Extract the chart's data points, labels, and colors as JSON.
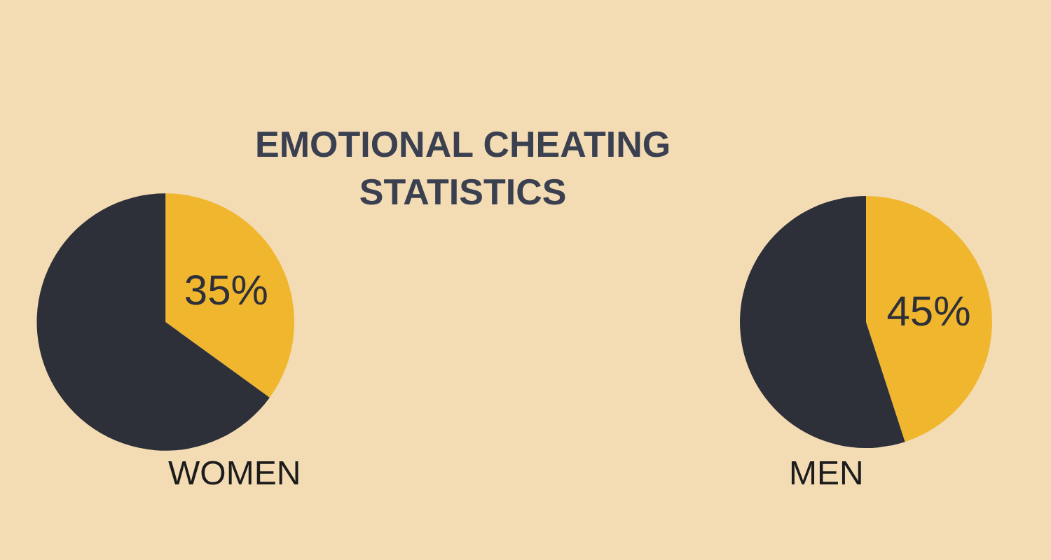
{
  "chart_data": [
    {
      "type": "pie",
      "title": "EMOTIONAL CHEATING\nSTATISTICS",
      "xlabel": "WOMEN",
      "categories": [
        null,
        null
      ],
      "values": [
        35,
        65
      ],
      "colors": [
        "#f0b62e",
        "#2e3039"
      ],
      "value_labels": [
        "35%",
        null
      ]
    },
    {
      "type": "pie",
      "xlabel": "MEN",
      "categories": [
        null,
        null
      ],
      "values": [
        45,
        55
      ],
      "colors": [
        "#f0b62e",
        "#2e3039"
      ],
      "value_labels": [
        "45%",
        null
      ]
    }
  ]
}
